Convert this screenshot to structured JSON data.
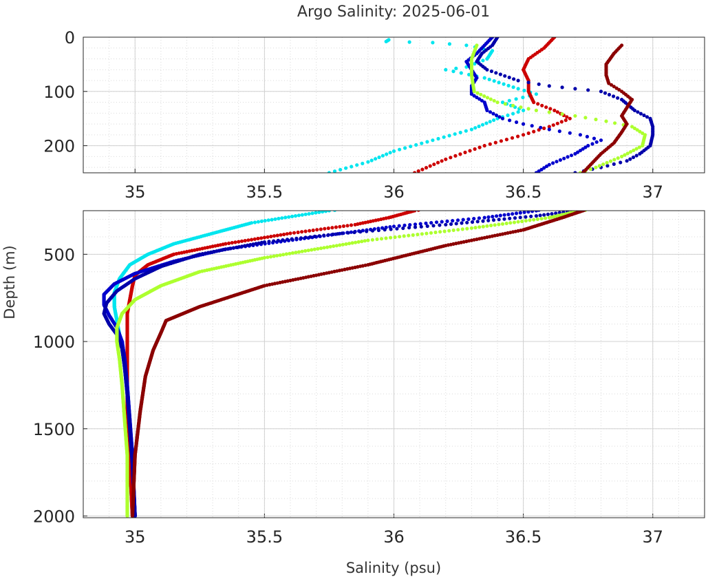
{
  "chart_data": {
    "type": "scatter",
    "title": "Argo Salinity: 2025-06-01",
    "xlabel": "Salinity (psu)",
    "ylabel": "Depth (m)",
    "grid": true,
    "legend": "none",
    "panels": [
      {
        "name": "upper",
        "xlim": [
          34.8,
          37.2
        ],
        "ylim": [
          250,
          0
        ],
        "xticks": [
          35,
          35.5,
          36,
          36.5,
          37
        ],
        "xtick_labels": [
          "35",
          "35.5",
          "36",
          "36.5",
          "37"
        ],
        "yticks": [
          0,
          100,
          200
        ],
        "ytick_labels": [
          "0",
          "100",
          "200"
        ]
      },
      {
        "name": "lower",
        "xlim": [
          34.8,
          37.2
        ],
        "ylim": [
          2010,
          250
        ],
        "xticks": [
          35,
          35.5,
          36,
          36.5,
          37
        ],
        "xtick_labels": [
          "35",
          "35.5",
          "36",
          "36.5",
          "37"
        ],
        "yticks": [
          500,
          1000,
          1500,
          2000
        ],
        "ytick_labels": [
          "500",
          "1000",
          "1500",
          "2000"
        ]
      }
    ],
    "series": [
      {
        "color": "#00e5ee",
        "points": [
          [
            35.98,
            5
          ],
          [
            35.97,
            8
          ],
          [
            36.15,
            10
          ],
          [
            36.28,
            15
          ],
          [
            36.38,
            25
          ],
          [
            36.36,
            40
          ],
          [
            36.28,
            55
          ],
          [
            36.2,
            60
          ],
          [
            36.35,
            75
          ],
          [
            36.48,
            95
          ],
          [
            36.55,
            105
          ],
          [
            36.42,
            120
          ],
          [
            36.5,
            135
          ],
          [
            36.4,
            150
          ],
          [
            36.3,
            170
          ],
          [
            36.15,
            190
          ],
          [
            36.0,
            210
          ],
          [
            35.9,
            230
          ],
          [
            35.75,
            250
          ],
          [
            35.62,
            280
          ],
          [
            35.45,
            320
          ],
          [
            35.3,
            380
          ],
          [
            35.15,
            440
          ],
          [
            35.05,
            500
          ],
          [
            34.98,
            560
          ],
          [
            34.94,
            640
          ],
          [
            34.92,
            720
          ],
          [
            34.92,
            800
          ],
          [
            34.93,
            880
          ],
          [
            34.94,
            960
          ],
          [
            34.95,
            1040
          ],
          [
            34.96,
            1150
          ],
          [
            34.97,
            1300
          ],
          [
            34.98,
            1500
          ],
          [
            34.98,
            1700
          ],
          [
            34.99,
            2000
          ]
        ]
      },
      {
        "color": "#cc0000",
        "points": [
          [
            36.62,
            0
          ],
          [
            36.58,
            20
          ],
          [
            36.52,
            40
          ],
          [
            36.5,
            60
          ],
          [
            36.52,
            80
          ],
          [
            36.52,
            100
          ],
          [
            36.54,
            120
          ],
          [
            36.62,
            135
          ],
          [
            36.68,
            150
          ],
          [
            36.6,
            165
          ],
          [
            36.5,
            180
          ],
          [
            36.35,
            200
          ],
          [
            36.2,
            225
          ],
          [
            36.08,
            250
          ],
          [
            35.98,
            290
          ],
          [
            35.85,
            330
          ],
          [
            35.6,
            380
          ],
          [
            35.35,
            440
          ],
          [
            35.15,
            500
          ],
          [
            35.05,
            560
          ],
          [
            35.0,
            620
          ],
          [
            34.99,
            680
          ],
          [
            34.98,
            760
          ],
          [
            34.97,
            840
          ],
          [
            34.97,
            920
          ],
          [
            34.97,
            1000
          ],
          [
            34.97,
            1100
          ],
          [
            34.97,
            1300
          ],
          [
            34.97,
            1500
          ],
          [
            34.98,
            1700
          ],
          [
            34.99,
            2000
          ]
        ]
      },
      {
        "color": "#0000cc",
        "points": [
          [
            36.38,
            0
          ],
          [
            36.35,
            15
          ],
          [
            36.32,
            30
          ],
          [
            36.28,
            45
          ],
          [
            36.3,
            60
          ],
          [
            36.32,
            75
          ],
          [
            36.3,
            90
          ],
          [
            36.3,
            105
          ],
          [
            36.35,
            120
          ],
          [
            36.36,
            135
          ],
          [
            36.42,
            150
          ],
          [
            36.5,
            160
          ],
          [
            36.6,
            170
          ],
          [
            36.72,
            180
          ],
          [
            36.8,
            190
          ],
          [
            36.75,
            200
          ],
          [
            36.7,
            215
          ],
          [
            36.6,
            235
          ],
          [
            36.55,
            250
          ],
          [
            36.35,
            290
          ],
          [
            36.0,
            340
          ],
          [
            35.7,
            400
          ],
          [
            35.35,
            470
          ],
          [
            35.15,
            540
          ],
          [
            35.0,
            610
          ],
          [
            34.92,
            670
          ],
          [
            34.88,
            730
          ],
          [
            34.88,
            790
          ],
          [
            34.9,
            850
          ],
          [
            34.93,
            920
          ],
          [
            34.95,
            1000
          ],
          [
            34.96,
            1100
          ],
          [
            34.97,
            1250
          ],
          [
            34.98,
            1450
          ],
          [
            34.99,
            1650
          ],
          [
            35.0,
            2000
          ]
        ]
      },
      {
        "color": "#0000aa",
        "points": [
          [
            36.4,
            0
          ],
          [
            36.38,
            15
          ],
          [
            36.34,
            30
          ],
          [
            36.32,
            45
          ],
          [
            36.36,
            60
          ],
          [
            36.48,
            80
          ],
          [
            36.6,
            90
          ],
          [
            36.7,
            95
          ],
          [
            36.8,
            100
          ],
          [
            36.88,
            115
          ],
          [
            36.93,
            135
          ],
          [
            36.99,
            150
          ],
          [
            37.0,
            165
          ],
          [
            37.0,
            180
          ],
          [
            36.99,
            200
          ],
          [
            36.95,
            215
          ],
          [
            36.9,
            228
          ],
          [
            36.8,
            240
          ],
          [
            36.7,
            250
          ],
          [
            36.55,
            280
          ],
          [
            36.2,
            330
          ],
          [
            35.8,
            380
          ],
          [
            35.5,
            430
          ],
          [
            35.25,
            500
          ],
          [
            35.1,
            570
          ],
          [
            35.0,
            640
          ],
          [
            34.93,
            710
          ],
          [
            34.89,
            780
          ],
          [
            34.88,
            840
          ],
          [
            34.9,
            900
          ],
          [
            34.93,
            960
          ],
          [
            34.95,
            1040
          ],
          [
            34.96,
            1150
          ],
          [
            34.97,
            1300
          ],
          [
            34.98,
            1500
          ],
          [
            34.99,
            1700
          ],
          [
            35.0,
            2000
          ]
        ]
      },
      {
        "color": "#adff2f",
        "points": [
          [
            36.32,
            15
          ],
          [
            36.3,
            40
          ],
          [
            36.3,
            70
          ],
          [
            36.31,
            100
          ],
          [
            36.4,
            120
          ],
          [
            36.55,
            135
          ],
          [
            36.7,
            145
          ],
          [
            36.82,
            155
          ],
          [
            36.92,
            165
          ],
          [
            36.97,
            180
          ],
          [
            36.96,
            200
          ],
          [
            36.88,
            220
          ],
          [
            36.78,
            240
          ],
          [
            36.72,
            250
          ],
          [
            36.6,
            290
          ],
          [
            36.3,
            350
          ],
          [
            35.9,
            420
          ],
          [
            35.5,
            520
          ],
          [
            35.25,
            600
          ],
          [
            35.1,
            680
          ],
          [
            35.0,
            760
          ],
          [
            34.95,
            840
          ],
          [
            34.93,
            920
          ],
          [
            34.93,
            1000
          ],
          [
            34.94,
            1100
          ],
          [
            34.95,
            1250
          ],
          [
            34.96,
            1450
          ],
          [
            34.97,
            1650
          ],
          [
            34.97,
            2000
          ]
        ]
      },
      {
        "color": "#8b0000",
        "points": [
          [
            36.88,
            15
          ],
          [
            36.85,
            30
          ],
          [
            36.82,
            50
          ],
          [
            36.82,
            70
          ],
          [
            36.83,
            85
          ],
          [
            36.88,
            100
          ],
          [
            36.92,
            115
          ],
          [
            36.9,
            130
          ],
          [
            36.88,
            145
          ],
          [
            36.9,
            160
          ],
          [
            36.88,
            175
          ],
          [
            36.85,
            195
          ],
          [
            36.8,
            215
          ],
          [
            36.76,
            235
          ],
          [
            36.73,
            250
          ],
          [
            36.65,
            290
          ],
          [
            36.5,
            360
          ],
          [
            36.2,
            450
          ],
          [
            35.9,
            560
          ],
          [
            35.5,
            680
          ],
          [
            35.25,
            800
          ],
          [
            35.12,
            880
          ],
          [
            35.1,
            950
          ],
          [
            35.07,
            1050
          ],
          [
            35.04,
            1200
          ],
          [
            35.02,
            1400
          ],
          [
            35.0,
            1650
          ],
          [
            34.99,
            2000
          ]
        ]
      }
    ]
  }
}
